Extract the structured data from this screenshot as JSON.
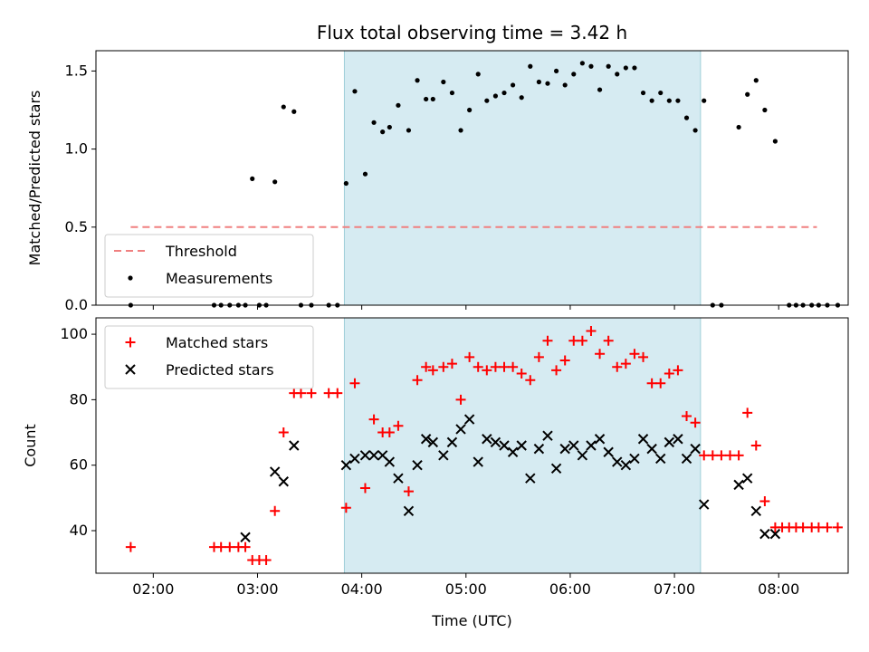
{
  "chart_data": [
    {
      "type": "scatter",
      "title": "Flux total observing time = 3.42 h",
      "xlabel": "",
      "ylabel": "Matched/Predicted stars",
      "xlim": [
        "01:27",
        "08:40"
      ],
      "ylim": [
        0,
        1.63
      ],
      "yticks": [
        0.0,
        0.5,
        1.0,
        1.5
      ],
      "ytick_labels": [
        "0.0",
        "0.5",
        "1.0",
        "1.5"
      ],
      "xticks": [
        "02:00",
        "03:00",
        "04:00",
        "05:00",
        "06:00",
        "07:00",
        "08:00"
      ],
      "shaded_region": [
        "03:50",
        "07:15"
      ],
      "legend": {
        "placement": "lower-left",
        "entries": [
          {
            "label": "Threshold",
            "style": "dashed-line",
            "color": "#f08080"
          },
          {
            "label": "Measurements",
            "style": "dot",
            "color": "#000000"
          }
        ]
      },
      "threshold": {
        "name": "Threshold",
        "value": 0.5,
        "x_start": "01:47",
        "x_end": "08:22"
      },
      "series": [
        {
          "name": "Measurements",
          "marker": "dot",
          "color": "#000000",
          "points": [
            [
              "01:47",
              0.0
            ],
            [
              "02:35",
              0.0
            ],
            [
              "02:39",
              0.0
            ],
            [
              "02:44",
              0.0
            ],
            [
              "02:49",
              0.0
            ],
            [
              "02:53",
              0.0
            ],
            [
              "02:57",
              0.81
            ],
            [
              "03:01",
              0.0
            ],
            [
              "03:05",
              0.0
            ],
            [
              "03:10",
              0.79
            ],
            [
              "03:15",
              1.27
            ],
            [
              "03:21",
              1.24
            ],
            [
              "03:25",
              0.0
            ],
            [
              "03:31",
              0.0
            ],
            [
              "03:41",
              0.0
            ],
            [
              "03:46",
              0.0
            ],
            [
              "03:51",
              0.78
            ],
            [
              "03:56",
              1.37
            ],
            [
              "04:02",
              0.84
            ],
            [
              "04:07",
              1.17
            ],
            [
              "04:12",
              1.11
            ],
            [
              "04:16",
              1.14
            ],
            [
              "04:21",
              1.28
            ],
            [
              "04:27",
              1.12
            ],
            [
              "04:32",
              1.44
            ],
            [
              "04:37",
              1.32
            ],
            [
              "04:41",
              1.32
            ],
            [
              "04:47",
              1.43
            ],
            [
              "04:52",
              1.36
            ],
            [
              "04:57",
              1.12
            ],
            [
              "05:02",
              1.25
            ],
            [
              "05:07",
              1.48
            ],
            [
              "05:12",
              1.31
            ],
            [
              "05:17",
              1.34
            ],
            [
              "05:22",
              1.36
            ],
            [
              "05:27",
              1.41
            ],
            [
              "05:32",
              1.33
            ],
            [
              "05:37",
              1.53
            ],
            [
              "05:42",
              1.43
            ],
            [
              "05:47",
              1.42
            ],
            [
              "05:52",
              1.5
            ],
            [
              "05:57",
              1.41
            ],
            [
              "06:02",
              1.48
            ],
            [
              "06:07",
              1.55
            ],
            [
              "06:12",
              1.53
            ],
            [
              "06:17",
              1.38
            ],
            [
              "06:22",
              1.53
            ],
            [
              "06:27",
              1.48
            ],
            [
              "06:32",
              1.52
            ],
            [
              "06:37",
              1.52
            ],
            [
              "06:42",
              1.36
            ],
            [
              "06:47",
              1.31
            ],
            [
              "06:52",
              1.36
            ],
            [
              "06:57",
              1.31
            ],
            [
              "07:02",
              1.31
            ],
            [
              "07:07",
              1.2
            ],
            [
              "07:12",
              1.12
            ],
            [
              "07:17",
              1.31
            ],
            [
              "07:22",
              0.0
            ],
            [
              "07:27",
              0.0
            ],
            [
              "07:37",
              1.14
            ],
            [
              "07:42",
              1.35
            ],
            [
              "07:47",
              1.44
            ],
            [
              "07:52",
              1.25
            ],
            [
              "07:58",
              1.05
            ],
            [
              "08:06",
              0.0
            ],
            [
              "08:10",
              0.0
            ],
            [
              "08:14",
              0.0
            ],
            [
              "08:19",
              0.0
            ],
            [
              "08:23",
              0.0
            ],
            [
              "08:28",
              0.0
            ],
            [
              "08:34",
              0.0
            ]
          ]
        }
      ]
    },
    {
      "type": "scatter",
      "title": "",
      "xlabel": "Time (UTC)",
      "ylabel": "Count",
      "xlim": [
        "01:27",
        "08:40"
      ],
      "ylim": [
        27,
        105
      ],
      "yticks": [
        40,
        60,
        80,
        100
      ],
      "ytick_labels": [
        "40",
        "60",
        "80",
        "100"
      ],
      "xticks": [
        "02:00",
        "03:00",
        "04:00",
        "05:00",
        "06:00",
        "07:00",
        "08:00"
      ],
      "shaded_region": [
        "03:50",
        "07:15"
      ],
      "legend": {
        "placement": "upper-left",
        "entries": [
          {
            "label": "Matched stars",
            "style": "plus",
            "color": "#ff0000"
          },
          {
            "label": "Predicted stars",
            "style": "x",
            "color": "#000000"
          }
        ]
      },
      "series": [
        {
          "name": "Matched stars",
          "marker": "plus",
          "color": "#ff0000",
          "points": [
            [
              "01:47",
              35
            ],
            [
              "02:35",
              35
            ],
            [
              "02:39",
              35
            ],
            [
              "02:44",
              35
            ],
            [
              "02:49",
              35
            ],
            [
              "02:53",
              35
            ],
            [
              "02:57",
              31
            ],
            [
              "03:01",
              31
            ],
            [
              "03:05",
              31
            ],
            [
              "03:10",
              46
            ],
            [
              "03:15",
              70
            ],
            [
              "03:21",
              82
            ],
            [
              "03:25",
              82
            ],
            [
              "03:31",
              82
            ],
            [
              "03:41",
              82
            ],
            [
              "03:46",
              82
            ],
            [
              "03:51",
              47
            ],
            [
              "03:56",
              85
            ],
            [
              "04:02",
              53
            ],
            [
              "04:07",
              74
            ],
            [
              "04:12",
              70
            ],
            [
              "04:16",
              70
            ],
            [
              "04:21",
              72
            ],
            [
              "04:27",
              52
            ],
            [
              "04:32",
              86
            ],
            [
              "04:37",
              90
            ],
            [
              "04:41",
              89
            ],
            [
              "04:47",
              90
            ],
            [
              "04:52",
              91
            ],
            [
              "04:57",
              80
            ],
            [
              "05:02",
              93
            ],
            [
              "05:07",
              90
            ],
            [
              "05:12",
              89
            ],
            [
              "05:17",
              90
            ],
            [
              "05:22",
              90
            ],
            [
              "05:27",
              90
            ],
            [
              "05:32",
              88
            ],
            [
              "05:37",
              86
            ],
            [
              "05:42",
              93
            ],
            [
              "05:47",
              98
            ],
            [
              "05:52",
              89
            ],
            [
              "05:57",
              92
            ],
            [
              "06:02",
              98
            ],
            [
              "06:07",
              98
            ],
            [
              "06:12",
              101
            ],
            [
              "06:17",
              94
            ],
            [
              "06:22",
              98
            ],
            [
              "06:27",
              90
            ],
            [
              "06:32",
              91
            ],
            [
              "06:37",
              94
            ],
            [
              "06:42",
              93
            ],
            [
              "06:47",
              85
            ],
            [
              "06:52",
              85
            ],
            [
              "06:57",
              88
            ],
            [
              "07:02",
              89
            ],
            [
              "07:07",
              75
            ],
            [
              "07:12",
              73
            ],
            [
              "07:17",
              63
            ],
            [
              "07:22",
              63
            ],
            [
              "07:27",
              63
            ],
            [
              "07:32",
              63
            ],
            [
              "07:37",
              63
            ],
            [
              "07:42",
              76
            ],
            [
              "07:47",
              66
            ],
            [
              "07:52",
              49
            ],
            [
              "07:58",
              41
            ],
            [
              "08:02",
              41
            ],
            [
              "08:06",
              41
            ],
            [
              "08:10",
              41
            ],
            [
              "08:14",
              41
            ],
            [
              "08:19",
              41
            ],
            [
              "08:23",
              41
            ],
            [
              "08:28",
              41
            ],
            [
              "08:34",
              41
            ]
          ]
        },
        {
          "name": "Predicted stars",
          "marker": "x",
          "color": "#000000",
          "points": [
            [
              "02:53",
              38
            ],
            [
              "03:10",
              58
            ],
            [
              "03:15",
              55
            ],
            [
              "03:21",
              66
            ],
            [
              "03:51",
              60
            ],
            [
              "03:56",
              62
            ],
            [
              "04:02",
              63
            ],
            [
              "04:07",
              63
            ],
            [
              "04:12",
              63
            ],
            [
              "04:16",
              61
            ],
            [
              "04:21",
              56
            ],
            [
              "04:27",
              46
            ],
            [
              "04:32",
              60
            ],
            [
              "04:37",
              68
            ],
            [
              "04:41",
              67
            ],
            [
              "04:47",
              63
            ],
            [
              "04:52",
              67
            ],
            [
              "04:57",
              71
            ],
            [
              "05:02",
              74
            ],
            [
              "05:07",
              61
            ],
            [
              "05:12",
              68
            ],
            [
              "05:17",
              67
            ],
            [
              "05:22",
              66
            ],
            [
              "05:27",
              64
            ],
            [
              "05:32",
              66
            ],
            [
              "05:37",
              56
            ],
            [
              "05:42",
              65
            ],
            [
              "05:47",
              69
            ],
            [
              "05:52",
              59
            ],
            [
              "05:57",
              65
            ],
            [
              "06:02",
              66
            ],
            [
              "06:07",
              63
            ],
            [
              "06:12",
              66
            ],
            [
              "06:17",
              68
            ],
            [
              "06:22",
              64
            ],
            [
              "06:27",
              61
            ],
            [
              "06:32",
              60
            ],
            [
              "06:37",
              62
            ],
            [
              "06:42",
              68
            ],
            [
              "06:47",
              65
            ],
            [
              "06:52",
              62
            ],
            [
              "06:57",
              67
            ],
            [
              "07:02",
              68
            ],
            [
              "07:07",
              62
            ],
            [
              "07:12",
              65
            ],
            [
              "07:17",
              48
            ],
            [
              "07:37",
              54
            ],
            [
              "07:42",
              56
            ],
            [
              "07:47",
              46
            ],
            [
              "07:52",
              39
            ],
            [
              "07:58",
              39
            ]
          ]
        }
      ]
    }
  ]
}
